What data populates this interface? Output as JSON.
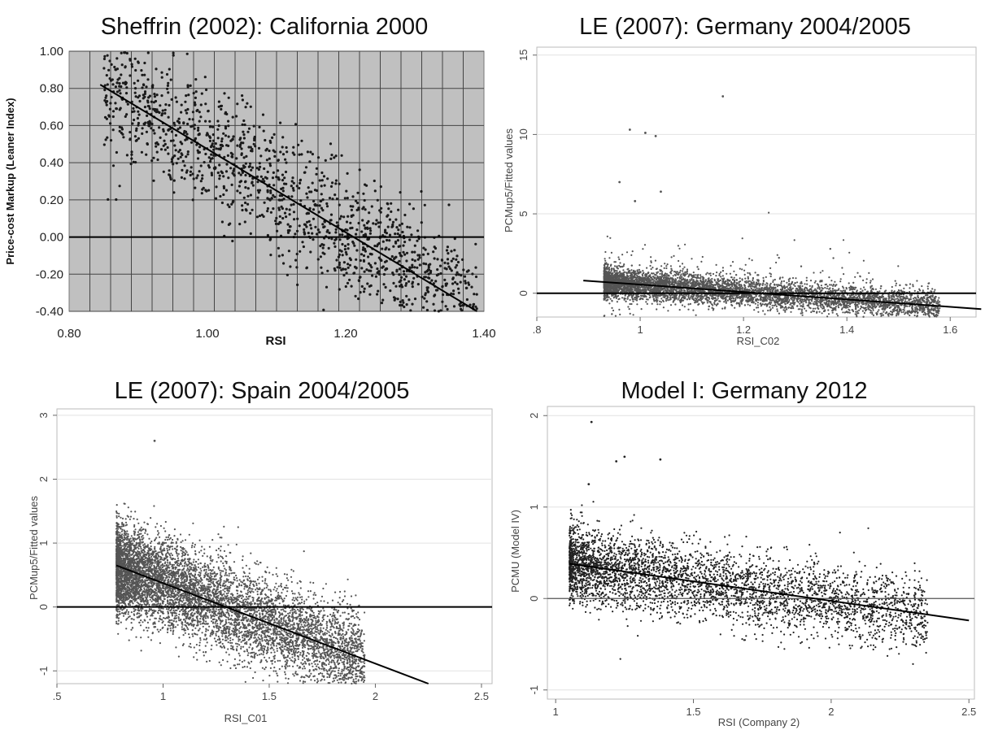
{
  "chart_data": [
    {
      "type": "scatter",
      "style": "gray-grid",
      "title": "Sheffrin (2002): California 2000",
      "xlabel": "RSI",
      "ylabel": "Price-cost Markup (Leaner Index)",
      "xlim": [
        0.8,
        1.4
      ],
      "ylim": [
        -0.4,
        1.0
      ],
      "xticks": [
        0.8,
        1.0,
        1.2,
        1.4
      ],
      "xtick_labels": [
        "0.80",
        "1.00",
        "1.20",
        "1.40"
      ],
      "yticks": [
        -0.4,
        -0.2,
        0.0,
        0.2,
        0.4,
        0.6,
        0.8,
        1.0
      ],
      "ytick_labels": [
        "-0.40",
        "-0.20",
        "0.00",
        "0.20",
        "0.40",
        "0.60",
        "0.80",
        "1.00"
      ],
      "grid": true,
      "zero_line": true,
      "fit_line": {
        "x": [
          0.845,
          1.39
        ],
        "y": [
          0.82,
          -0.4
        ]
      },
      "point_cloud": {
        "count": 1500,
        "x_range": [
          0.85,
          1.39
        ],
        "noise_sd": 0.17,
        "fit": {
          "intercept": 2.72,
          "slope": -2.25
        },
        "marker_color": "#1a1a1a",
        "note": "dense scatter along fit line"
      }
    },
    {
      "type": "scatter",
      "style": "stata",
      "title": "LE (2007): Germany 2004/2005",
      "xlabel": "RSI_C02",
      "ylabel": "PCMup5/Fitted values",
      "xlim": [
        0.8,
        1.65
      ],
      "ylim": [
        -1.5,
        15.5
      ],
      "xticks": [
        0.8,
        1.0,
        1.2,
        1.4,
        1.6
      ],
      "xtick_labels": [
        ".8",
        "1",
        "1.2",
        "1.4",
        "1.6"
      ],
      "yticks": [
        0,
        5,
        10,
        15
      ],
      "ytick_labels": [
        "0",
        "5",
        "10",
        "15"
      ],
      "grid": true,
      "zero_line": true,
      "fit_line": {
        "x": [
          0.89,
          1.66
        ],
        "y": [
          0.8,
          -1.0
        ]
      },
      "point_cloud": {
        "count": 6000,
        "x_range": [
          0.93,
          1.58
        ],
        "noise_sd": 0.45,
        "fit": {
          "intercept": 2.9,
          "slope": -2.35
        },
        "marker_color": "#555555",
        "outliers": [
          [
            0.98,
            10.3
          ],
          [
            1.01,
            10.1
          ],
          [
            1.16,
            12.4
          ],
          [
            1.03,
            9.9
          ],
          [
            0.96,
            7.0
          ],
          [
            1.04,
            6.4
          ],
          [
            0.99,
            5.8
          ]
        ]
      }
    },
    {
      "type": "scatter",
      "style": "stata",
      "title": "LE (2007): Spain 2004/2005",
      "xlabel": "RSI_C01",
      "ylabel": "PCMup5/Fitted values",
      "xlim": [
        0.5,
        2.55
      ],
      "ylim": [
        -1.2,
        3.1
      ],
      "xticks": [
        0.5,
        1.0,
        1.5,
        2.0,
        2.5
      ],
      "xtick_labels": [
        ".5",
        "1",
        "1.5",
        "2",
        "2.5"
      ],
      "yticks": [
        -1,
        0,
        1,
        2,
        3
      ],
      "ytick_labels": [
        "-1",
        "0",
        "1",
        "2",
        "3"
      ],
      "grid": true,
      "zero_line": true,
      "fit_line": {
        "x": [
          0.78,
          2.25
        ],
        "y": [
          0.65,
          -1.2
        ]
      },
      "point_cloud": {
        "count": 7000,
        "x_range": [
          0.78,
          1.95
        ],
        "noise_sd": 0.35,
        "fit": {
          "intercept": 1.63,
          "slope": -1.26
        },
        "marker_color": "#555555",
        "outliers": [
          [
            0.96,
            2.6
          ]
        ]
      }
    },
    {
      "type": "scatter",
      "style": "stata",
      "title": "Model I: Germany 2012",
      "xlabel": "RSI (Company 2)",
      "ylabel": "PCMU (Model IV)",
      "xlim": [
        0.97,
        2.52
      ],
      "ylim": [
        -1.1,
        2.1
      ],
      "xticks": [
        1.0,
        1.5,
        2.0,
        2.5
      ],
      "xtick_labels": [
        "1",
        "1.5",
        "2",
        "2.5"
      ],
      "yticks": [
        -1,
        0,
        1,
        2
      ],
      "ytick_labels": [
        "-1",
        "0",
        "1",
        "2"
      ],
      "grid": true,
      "zero_line": true,
      "fit_line": {
        "x": [
          1.05,
          2.5
        ],
        "y": [
          0.38,
          -0.24
        ]
      },
      "point_cloud": {
        "count": 4000,
        "x_range": [
          1.05,
          2.35
        ],
        "noise_sd": 0.2,
        "fit": {
          "intercept": 0.83,
          "slope": -0.43
        },
        "marker_color": "#222222",
        "outliers": [
          [
            1.13,
            1.93
          ],
          [
            1.25,
            1.55
          ],
          [
            1.22,
            1.5
          ],
          [
            1.38,
            1.52
          ],
          [
            1.12,
            1.25
          ]
        ]
      }
    }
  ]
}
